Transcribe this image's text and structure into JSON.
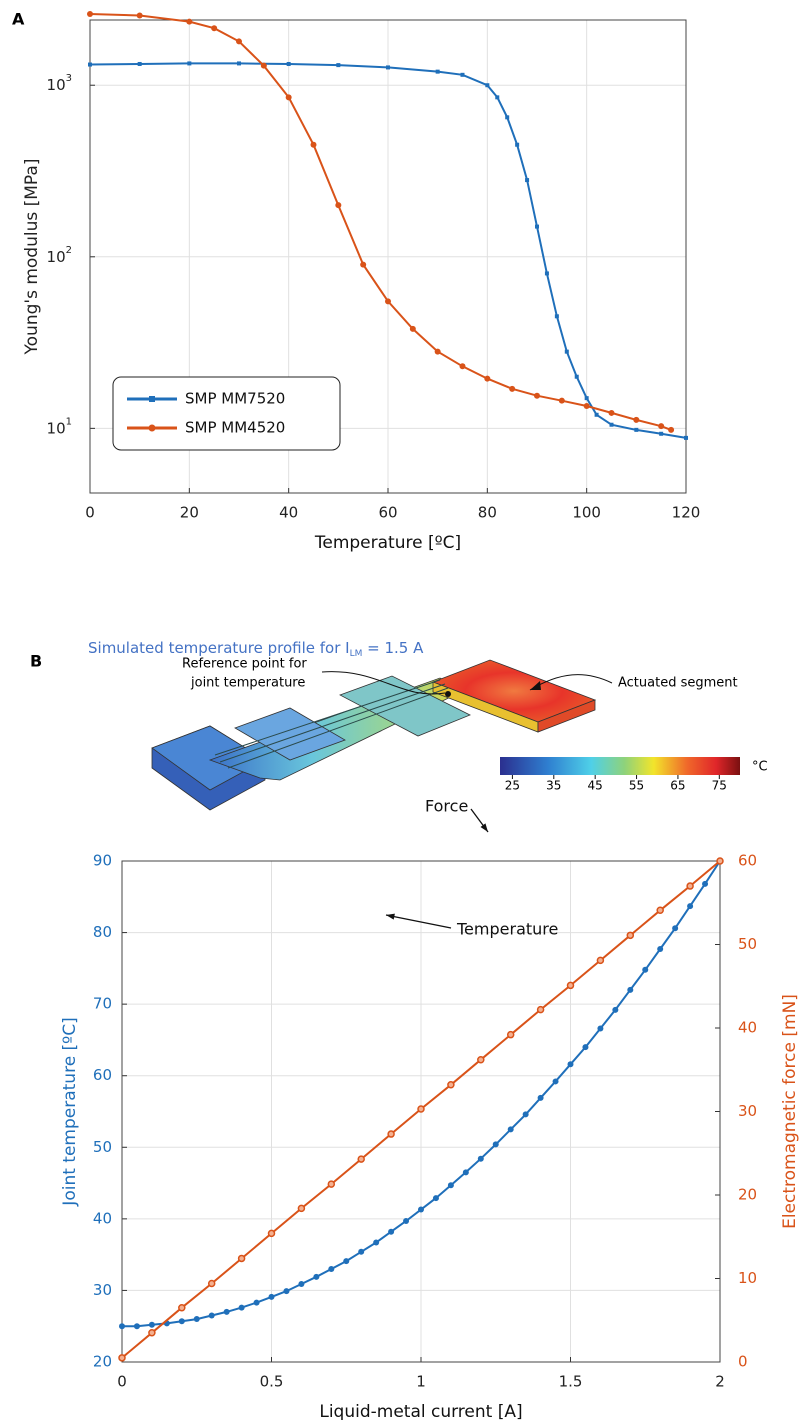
{
  "panels": [
    "A",
    "B"
  ],
  "diagram": {
    "title": "Simulated temperature profile for I",
    "title_subscript": "LM",
    "title_tail": " = 1.5 A",
    "reference_label": [
      "Reference point for",
      "joint temperature"
    ],
    "segment_label": "Actuated segment",
    "colorbar": {
      "ticks": [
        25,
        35,
        45,
        55,
        65,
        75
      ],
      "range": [
        22,
        80
      ],
      "unit": "°C"
    }
  },
  "chart_data": [
    {
      "type": "line",
      "xlabel": "Temperature [ºC]",
      "ylabel": "Young's modulus [MPa]",
      "xlim": [
        0,
        120
      ],
      "xticks": [
        0,
        20,
        40,
        60,
        80,
        100,
        120
      ],
      "ylim": [
        4.2,
        2400
      ],
      "yscale": "log",
      "yticks": [
        {
          "value": 10,
          "label": "10",
          "exponent": "1"
        },
        {
          "value": 100,
          "label": "10",
          "exponent": "2"
        },
        {
          "value": 1000,
          "label": "10",
          "exponent": "3"
        }
      ],
      "grid": true,
      "legend": "lower left",
      "series": [
        {
          "name": "SMP MM7520",
          "color": "#1f6fba",
          "marker": "square",
          "x": [
            0,
            10,
            20,
            30,
            40,
            50,
            60,
            70,
            75,
            80,
            82,
            84,
            86,
            88,
            90,
            92,
            94,
            96,
            98,
            100,
            102,
            105,
            110,
            115,
            120
          ],
          "values": [
            1320,
            1330,
            1340,
            1340,
            1330,
            1310,
            1270,
            1200,
            1150,
            1000,
            850,
            650,
            450,
            280,
            150,
            80,
            45,
            28,
            20,
            15,
            12,
            10.5,
            9.8,
            9.3,
            8.8
          ]
        },
        {
          "name": "SMP MM4520",
          "color": "#d95319",
          "marker": "circle",
          "x": [
            0,
            10,
            20,
            25,
            30,
            35,
            40,
            45,
            50,
            55,
            60,
            65,
            70,
            75,
            80,
            85,
            90,
            95,
            100,
            105,
            110,
            115,
            117
          ],
          "values": [
            2600,
            2550,
            2350,
            2150,
            1800,
            1300,
            850,
            450,
            200,
            90,
            55,
            38,
            28,
            23,
            19.5,
            17,
            15.5,
            14.5,
            13.5,
            12.3,
            11.2,
            10.3,
            9.8
          ]
        }
      ]
    },
    {
      "type": "line",
      "xlabel": "Liquid-metal current [A]",
      "ylabel": "Joint temperature [ºC]",
      "y2label": "Electromagnetic force [mN]",
      "xlim": [
        0,
        2
      ],
      "xticks": [
        0,
        0.5,
        1,
        1.5,
        2
      ],
      "ylim": [
        20,
        90
      ],
      "yticks": [
        20,
        30,
        40,
        50,
        60,
        70,
        80,
        90
      ],
      "y2lim": [
        0,
        60
      ],
      "y2ticks": [
        0,
        10,
        20,
        30,
        40,
        50,
        60
      ],
      "grid": true,
      "annotations": [
        "Force",
        "Temperature"
      ],
      "series": [
        {
          "name": "Temperature",
          "color": "#1f6fba",
          "marker": "circle",
          "axis": "y",
          "x": [
            0,
            0.05,
            0.1,
            0.15,
            0.2,
            0.25,
            0.3,
            0.35,
            0.4,
            0.45,
            0.5,
            0.55,
            0.6,
            0.65,
            0.7,
            0.75,
            0.8,
            0.85,
            0.9,
            0.95,
            1,
            1.05,
            1.1,
            1.15,
            1.2,
            1.25,
            1.3,
            1.35,
            1.4,
            1.45,
            1.5,
            1.55,
            1.6,
            1.65,
            1.7,
            1.75,
            1.8,
            1.85,
            1.9,
            1.95,
            2
          ],
          "values": [
            25.0,
            25.0,
            25.2,
            25.4,
            25.7,
            26.0,
            26.5,
            27.0,
            27.6,
            28.3,
            29.1,
            29.9,
            30.9,
            31.9,
            33.0,
            34.1,
            35.4,
            36.7,
            38.2,
            39.7,
            41.3,
            42.9,
            44.7,
            46.5,
            48.4,
            50.4,
            52.5,
            54.6,
            56.9,
            59.2,
            61.6,
            64.0,
            66.6,
            69.2,
            72.0,
            74.8,
            77.7,
            80.6,
            83.7,
            86.8,
            90.0
          ]
        },
        {
          "name": "Force",
          "color": "#d95319",
          "marker": "ring",
          "axis": "y2",
          "x": [
            0,
            0.1,
            0.2,
            0.3,
            0.4,
            0.5,
            0.6,
            0.7,
            0.8,
            0.9,
            1,
            1.1,
            1.2,
            1.3,
            1.4,
            1.5,
            1.6,
            1.7,
            1.8,
            1.9,
            2
          ],
          "values": [
            0.5,
            3.5,
            6.5,
            9.4,
            12.4,
            15.4,
            18.4,
            21.3,
            24.3,
            27.3,
            30.3,
            33.2,
            36.2,
            39.2,
            42.2,
            45.1,
            48.1,
            51.1,
            54.1,
            57.0,
            60.0
          ]
        }
      ]
    }
  ]
}
